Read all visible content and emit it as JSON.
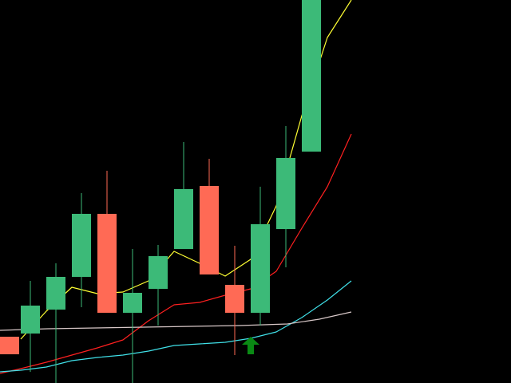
{
  "colors": {
    "background": "#000000",
    "bull": "#3cba78",
    "bear": "#ff6a55",
    "signal_arrow": "#0a8a14",
    "ma_fast": "#ffff33",
    "ma_mid": "#ff2020",
    "ma_slow": "#40e0e8",
    "ma_long": "#d8c8c8"
  },
  "chart_data": {
    "type": "candlestick",
    "grid": false,
    "legend": "none",
    "ylim": [
      0,
      480
    ],
    "x_slots": [
      0,
      26,
      58,
      90,
      122,
      154,
      186,
      218,
      250,
      282,
      314,
      346,
      378,
      440
    ],
    "candles": [
      {
        "x": 0,
        "open": 58,
        "close": 36,
        "high": 58,
        "low": 36
      },
      {
        "x": 26,
        "open": 62,
        "close": 97,
        "high": 128,
        "low": 14
      },
      {
        "x": 58,
        "open": 92,
        "close": 133,
        "high": 150,
        "low": 0
      },
      {
        "x": 90,
        "open": 133,
        "close": 212,
        "high": 238,
        "low": 95
      },
      {
        "x": 122,
        "open": 212,
        "close": 88,
        "high": 266,
        "low": 88
      },
      {
        "x": 154,
        "open": 88,
        "close": 113,
        "high": 168,
        "low": 0
      },
      {
        "x": 186,
        "open": 118,
        "close": 159,
        "high": 173,
        "low": 72
      },
      {
        "x": 218,
        "open": 168,
        "close": 243,
        "high": 302,
        "low": 168
      },
      {
        "x": 250,
        "open": 247,
        "close": 136,
        "high": 281,
        "low": 136
      },
      {
        "x": 282,
        "open": 123,
        "close": 88,
        "high": 172,
        "low": 35
      },
      {
        "x": 314,
        "open": 88,
        "close": 199,
        "high": 246,
        "low": 72
      },
      {
        "x": 346,
        "open": 193,
        "close": 282,
        "high": 322,
        "low": 145
      },
      {
        "x": 378,
        "open": 290,
        "close": 480,
        "high": 480,
        "low": 290
      }
    ],
    "series": [
      {
        "type": "line",
        "color_key": "ma_fast",
        "x": [
          26,
          58,
          90,
          122,
          154,
          186,
          218,
          250,
          282,
          314,
          346,
          378,
          410,
          440
        ],
        "y": [
          55,
          90,
          120,
          112,
          114,
          128,
          165,
          150,
          134,
          155,
          222,
          335,
          433,
          480
        ]
      },
      {
        "type": "line",
        "color_key": "ma_mid",
        "x": [
          0,
          26,
          58,
          90,
          122,
          154,
          186,
          218,
          250,
          282,
          314,
          346,
          378,
          410,
          440
        ],
        "y": [
          12,
          18,
          26,
          35,
          44,
          54,
          78,
          98,
          101,
          110,
          118,
          140,
          194,
          246,
          312
        ]
      },
      {
        "type": "line",
        "color_key": "ma_slow",
        "x": [
          0,
          26,
          58,
          90,
          122,
          154,
          186,
          218,
          250,
          282,
          314,
          346,
          378,
          410,
          440
        ],
        "y": [
          14,
          16,
          20,
          28,
          32,
          35,
          40,
          47,
          49,
          51,
          56,
          64,
          82,
          104,
          128
        ]
      },
      {
        "type": "line",
        "color_key": "ma_long",
        "x": [
          0,
          60,
          120,
          180,
          240,
          300,
          360,
          400,
          440
        ],
        "y": [
          66,
          68,
          69,
          70,
          71,
          72,
          74,
          80,
          89
        ]
      }
    ],
    "signals": [
      {
        "type": "buy",
        "x": 314,
        "y": 58
      }
    ]
  }
}
